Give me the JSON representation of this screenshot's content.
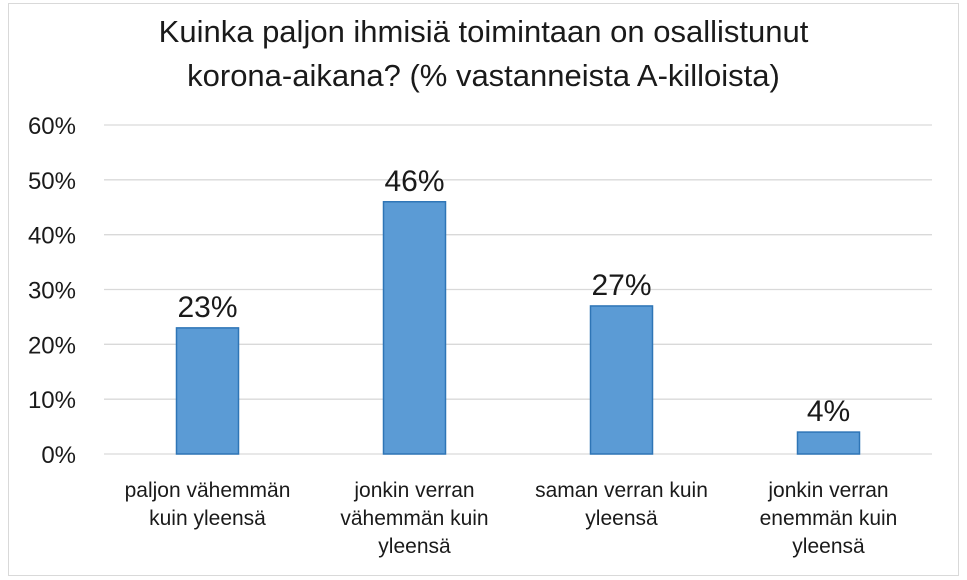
{
  "chart_data": {
    "type": "bar",
    "title_lines": [
      "Kuinka paljon ihmisiä toimintaan on osallistunut",
      "korona-aikana? (% vastanneista A-killoista)"
    ],
    "categories": [
      [
        "paljon vähemmän",
        "kuin yleensä"
      ],
      [
        "jonkin verran",
        "vähemmän kuin",
        "yleensä"
      ],
      [
        "saman verran kuin",
        "yleensä"
      ],
      [
        "jonkin verran",
        "enemmän kuin",
        "yleensä"
      ]
    ],
    "values": [
      23,
      46,
      27,
      4
    ],
    "data_labels": [
      "23%",
      "46%",
      "27%",
      "4%"
    ],
    "yticks": [
      "0%",
      "10%",
      "20%",
      "30%",
      "40%",
      "50%",
      "60%"
    ],
    "ylim": [
      0,
      60
    ],
    "grid": true,
    "legend": "none",
    "bar_color": "#5b9bd5",
    "bar_edge_color": "#2e75b6",
    "grid_color": "#d9d9d9"
  }
}
